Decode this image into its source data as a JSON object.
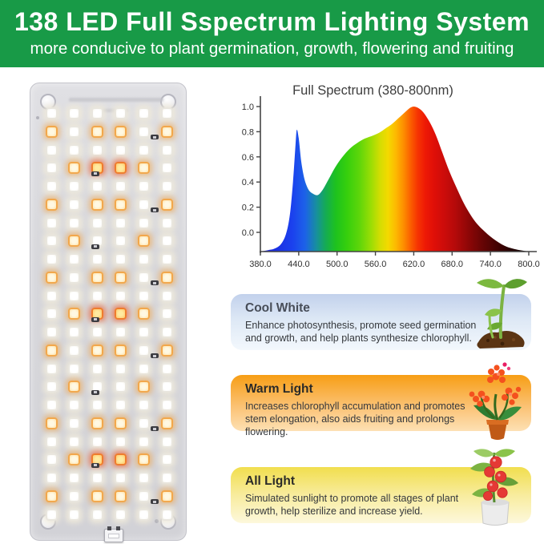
{
  "header": {
    "title": "138 LED Full Sspectrum Lighting System",
    "subtitle": "more conducive to plant germination, growth, flowering and fruiting",
    "bg_color": "#189a47",
    "text_color": "#ffffff"
  },
  "panel": {
    "led_count": 138,
    "columns": 6,
    "rows": [
      "WWWWWW",
      "OWOOWO",
      "WWWWWW",
      "WORROW",
      "WWWWWW",
      "OWOOWO",
      "WWWWWW",
      "WOWWOW",
      "WWWWWW",
      "OWOOWO",
      "WWWWWW",
      "WORROW",
      "WWWWWW",
      "OWOOWO",
      "WWWWWW",
      "WOWWOW",
      "WWWWWW",
      "OWOOWO",
      "WWWWWW",
      "WORROW",
      "WWWWWW",
      "OWOOWO",
      "WWWWWW"
    ],
    "legend": {
      "W": "cool-white-led",
      "O": "warm-white-led",
      "R": "red-warm-led"
    },
    "board_color": "#d7d7db"
  },
  "chart_data": {
    "type": "area",
    "title": "Full Spectrum (380-800nm)",
    "xlabel": "",
    "ylabel": "",
    "xlim": [
      380,
      800
    ],
    "ylim": [
      0,
      1.0
    ],
    "grid": false,
    "legend_position": "none",
    "x": [
      380,
      392,
      402,
      412,
      420,
      426,
      431,
      435,
      437,
      440,
      444,
      449,
      455,
      462,
      470,
      478,
      487,
      497,
      508,
      520,
      532,
      544,
      556,
      566,
      576,
      586,
      596,
      606,
      614,
      620,
      627,
      635,
      644,
      654,
      665,
      676,
      688,
      700,
      714,
      728,
      744,
      762,
      780,
      800
    ],
    "y": [
      0.0,
      0.01,
      0.02,
      0.05,
      0.12,
      0.25,
      0.48,
      0.74,
      0.84,
      0.78,
      0.62,
      0.5,
      0.43,
      0.4,
      0.39,
      0.43,
      0.5,
      0.58,
      0.65,
      0.71,
      0.75,
      0.78,
      0.8,
      0.82,
      0.85,
      0.88,
      0.92,
      0.96,
      0.99,
      1.0,
      0.99,
      0.96,
      0.9,
      0.81,
      0.68,
      0.55,
      0.43,
      0.32,
      0.22,
      0.15,
      0.09,
      0.04,
      0.015,
      0.0
    ],
    "xticks": [
      380,
      440,
      500,
      560,
      620,
      680,
      740,
      800
    ],
    "xtick_labels": [
      "380.0",
      "440.0",
      "500.0",
      "560.0",
      "620.0",
      "680.0",
      "740.0",
      "800.0"
    ],
    "yticks": [
      0,
      0.2,
      0.4,
      0.6,
      0.8,
      1.0
    ],
    "ytick_labels": [
      "0.0",
      "0.2",
      "0.4",
      "0.6",
      "0.8",
      "1.0"
    ],
    "gradient_stops": [
      {
        "nm": 380,
        "color": "#1b1fd6"
      },
      {
        "nm": 430,
        "color": "#1b41ee"
      },
      {
        "nm": 450,
        "color": "#1c62e8"
      },
      {
        "nm": 468,
        "color": "#17909c"
      },
      {
        "nm": 482,
        "color": "#15ab54"
      },
      {
        "nm": 498,
        "color": "#1ec21e"
      },
      {
        "nm": 515,
        "color": "#35cf0d"
      },
      {
        "nm": 535,
        "color": "#5ed60a"
      },
      {
        "nm": 552,
        "color": "#96dd05"
      },
      {
        "nm": 568,
        "color": "#d6dd02"
      },
      {
        "nm": 580,
        "color": "#f4d900"
      },
      {
        "nm": 592,
        "color": "#fdb901"
      },
      {
        "nm": 604,
        "color": "#fd8e00"
      },
      {
        "nm": 615,
        "color": "#fb5f00"
      },
      {
        "nm": 626,
        "color": "#f63502"
      },
      {
        "nm": 638,
        "color": "#ee1905"
      },
      {
        "nm": 652,
        "color": "#df0f08"
      },
      {
        "nm": 668,
        "color": "#cc0c0a"
      },
      {
        "nm": 685,
        "color": "#b40a0a"
      },
      {
        "nm": 705,
        "color": "#8f0707"
      },
      {
        "nm": 725,
        "color": "#6b0505"
      },
      {
        "nm": 748,
        "color": "#470303"
      },
      {
        "nm": 772,
        "color": "#250101"
      },
      {
        "nm": 800,
        "color": "#070000"
      }
    ]
  },
  "cards": [
    {
      "title": "Cool White",
      "body": "Enhance photosynthesis, promote seed germination and growth, and help plants synthesize chlorophyll.",
      "accent": "#c2d1ec",
      "icon": "seedling"
    },
    {
      "title": "Warm Light",
      "body": "Increases chlorophyll accumulation and promotes stem elongation, also aids fruiting and prolongs flowering.",
      "accent": "#f79e15",
      "icon": "flower-pot"
    },
    {
      "title": "All Light",
      "body": "Simulated sunlight to promote all stages of plant growth, help sterilize and increase yield.",
      "accent": "#f1de4e",
      "icon": "tomato-plant"
    }
  ]
}
